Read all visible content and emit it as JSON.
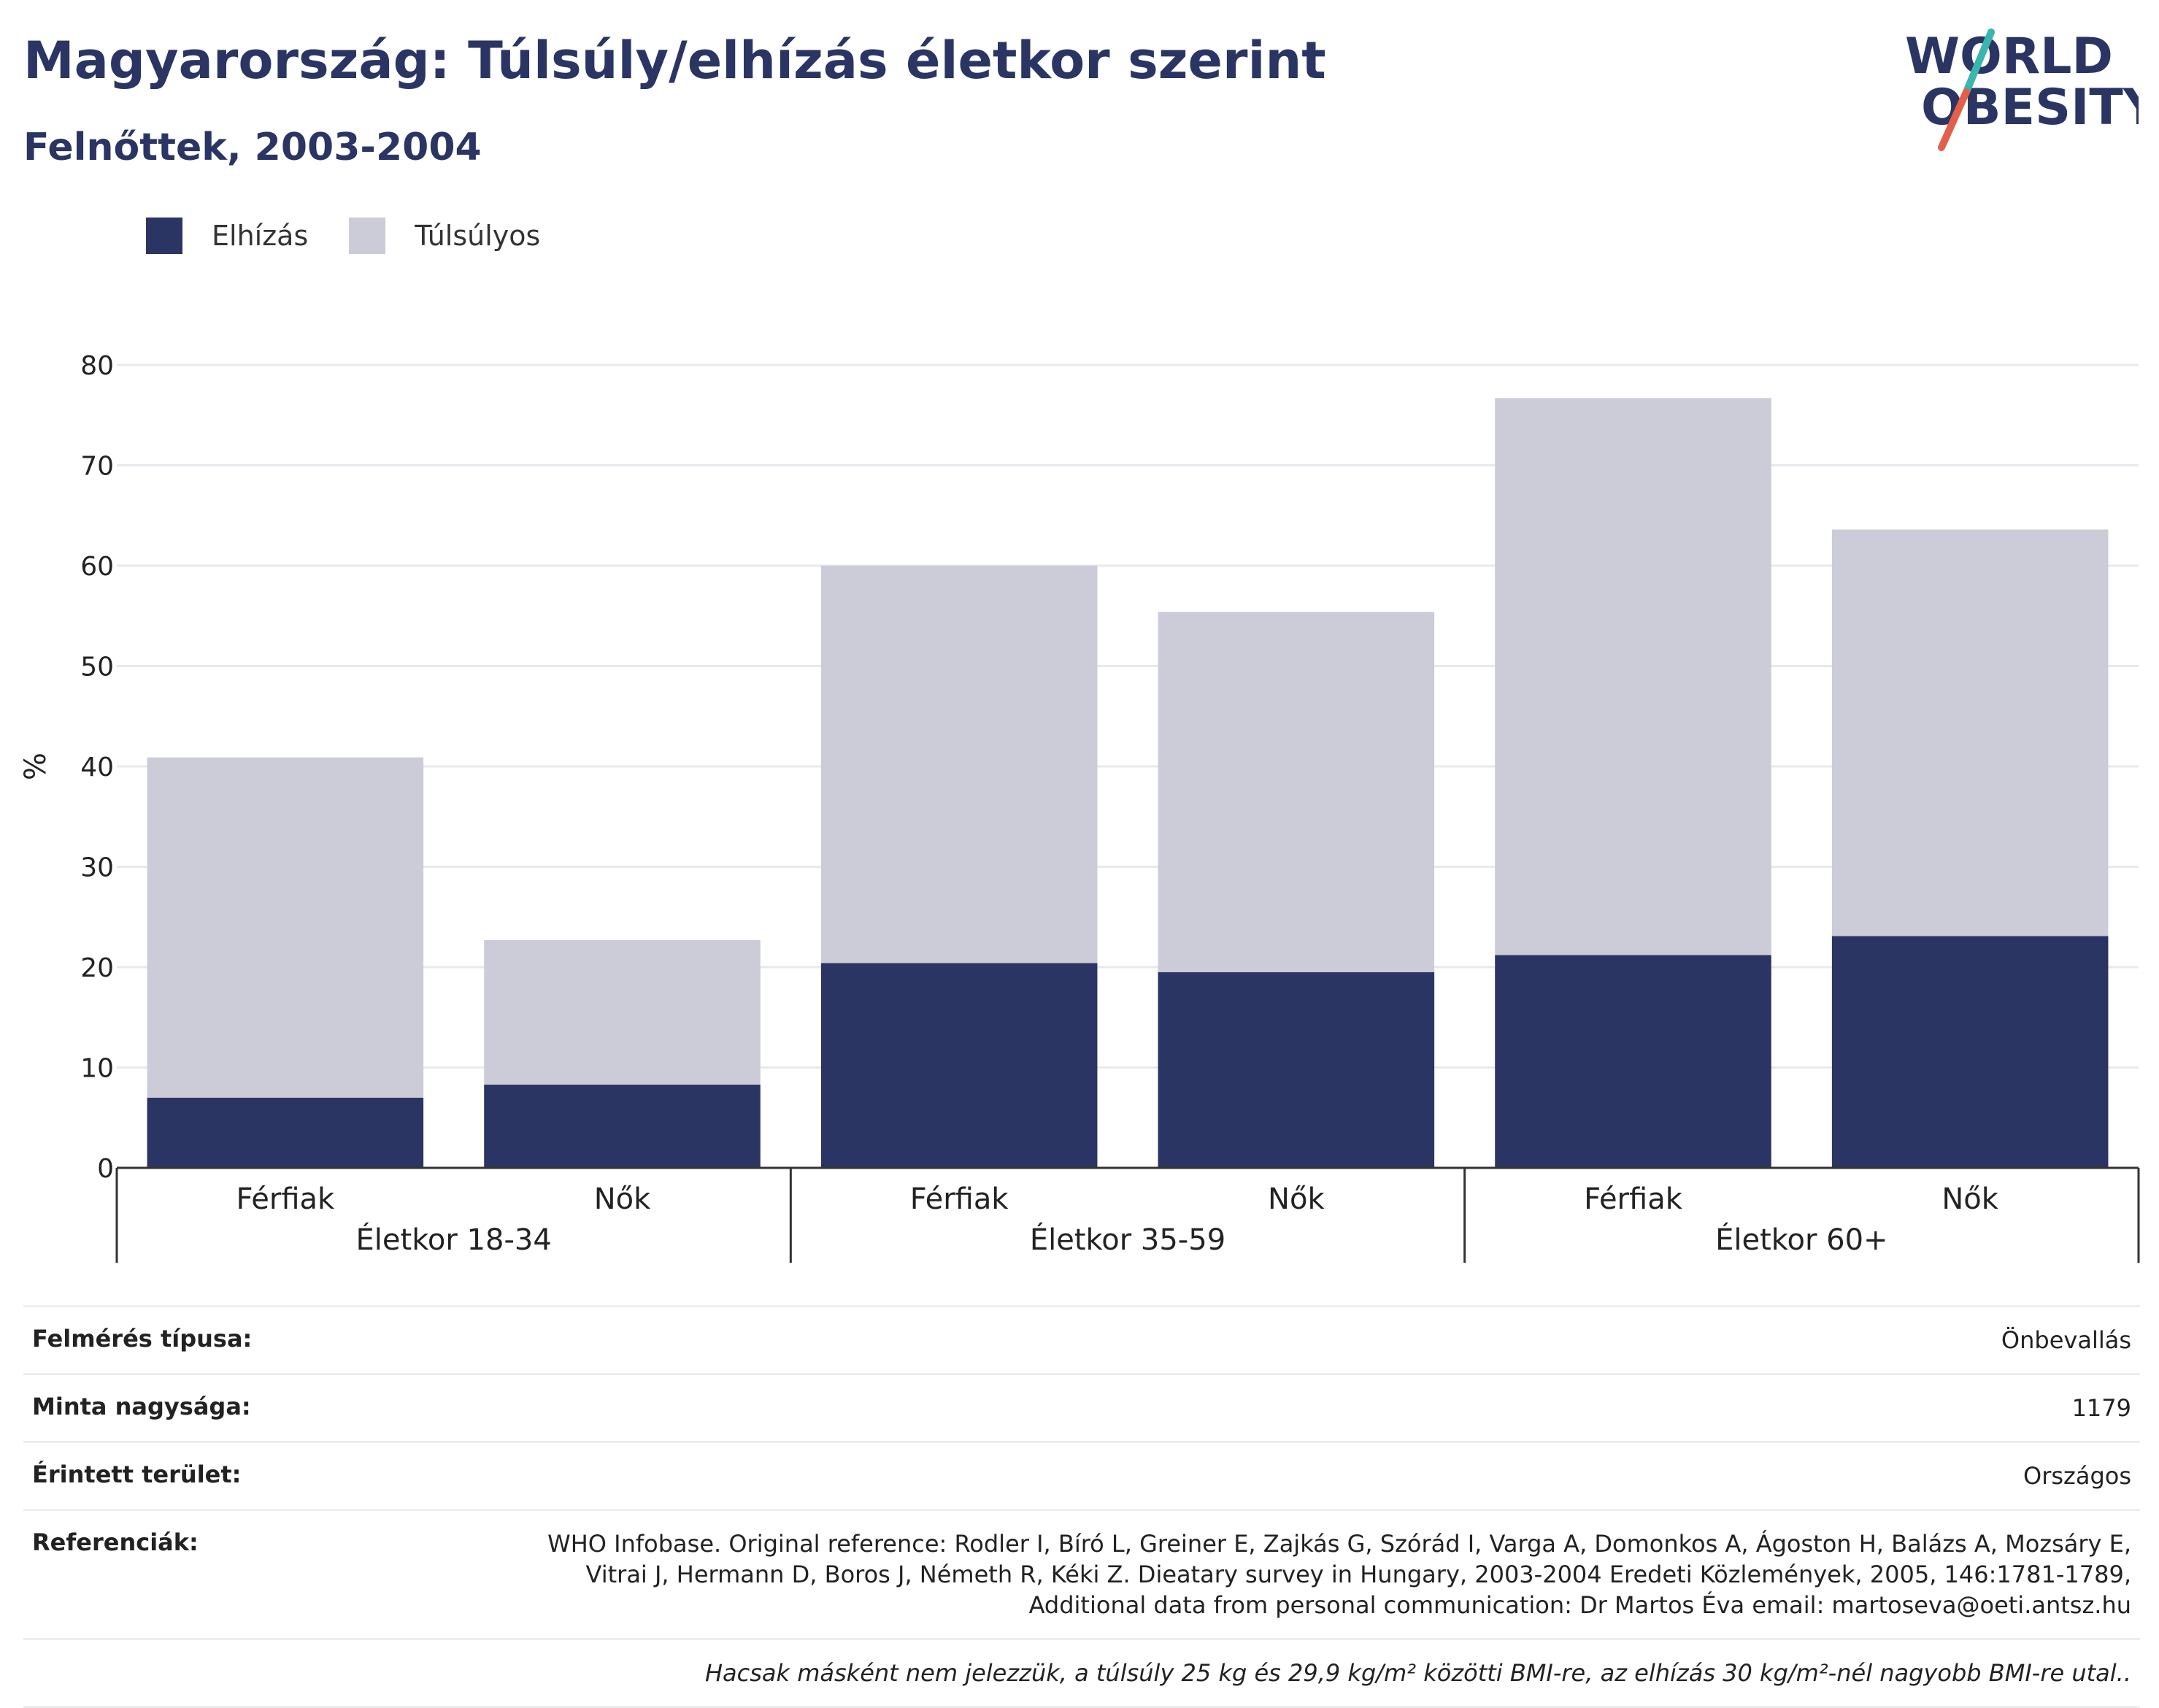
{
  "header": {
    "title": "Magyarország: Túlsúly/elhízás életkor szerint",
    "subtitle": "Felnőttek, 2003-2004"
  },
  "logo": {
    "line1": "WORLD",
    "line2": "OBESITY",
    "colors": {
      "text": "#2a3563",
      "slash_top": "#3ab5b0",
      "slash_bottom": "#e2604a"
    }
  },
  "colors": {
    "obesity": "#2a3563",
    "overweight": "#cbccd8",
    "grid": "#e8e8ee",
    "axis": "#333333"
  },
  "chart_data": {
    "type": "bar",
    "stacked": true,
    "ylabel": "%",
    "ylim": [
      0,
      80
    ],
    "yticks": [
      0,
      10,
      20,
      30,
      40,
      50,
      60,
      70,
      80
    ],
    "grid": true,
    "legend_position": "top-left",
    "groups": [
      "Életkor 18-34",
      "Életkor 35-59",
      "Életkor 60+"
    ],
    "categories": [
      "Férfiak",
      "Nők",
      "Férfiak",
      "Nők",
      "Férfiak",
      "Nők"
    ],
    "series": [
      {
        "name": "Elhízás",
        "values": [
          7.0,
          8.3,
          20.4,
          19.5,
          21.2,
          23.1
        ]
      },
      {
        "name": "Túlsúlyos",
        "values": [
          33.9,
          14.4,
          39.6,
          35.9,
          55.5,
          40.5
        ]
      }
    ]
  },
  "info": {
    "rows": [
      {
        "label": "Felmérés típusa:",
        "value": "Önbevallás"
      },
      {
        "label": "Minta nagysága:",
        "value": "1179"
      },
      {
        "label": "Érintett terület:",
        "value": "Országos"
      },
      {
        "label": "Referenciák:",
        "value_lines": [
          "WHO Infobase. Original reference: Rodler I, Bíró L, Greiner E, Zajkás G, Szórád I, Varga A, Domonkos A, Ágoston H, Balázs A, Mozsáry E,",
          "Vitrai J, Hermann D, Boros J, Németh R, Kéki Z. Dieatary survey in Hungary, 2003-2004 Eredeti Közlemények, 2005, 146:1781-1789,",
          "Additional data from personal communication: Dr Martos Éva email: martoseva@oeti.antsz.hu"
        ]
      }
    ],
    "note": "Hacsak másként nem jelezzük, a túlsúly 25 kg és 29,9 kg/m² közötti BMI-re, az elhízás 30 kg/m²-nél nagyobb BMI-re utal.."
  }
}
